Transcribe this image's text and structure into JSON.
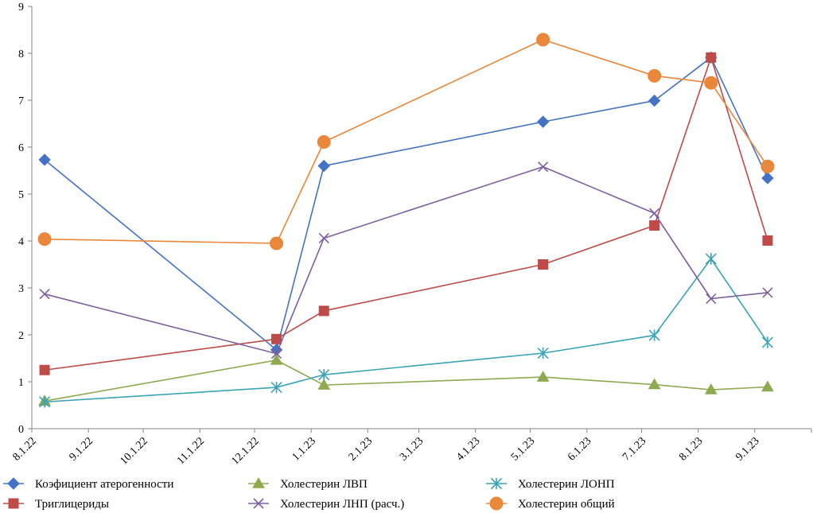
{
  "chart_data": {
    "type": "line",
    "title": "",
    "xlabel": "",
    "ylabel": "",
    "x_type": "date",
    "x_ticks": [
      "8.1.22",
      "9.1.22",
      "10.1.22",
      "11.1.22",
      "12.1.22",
      "1.1.23",
      "2.1.23",
      "3.1.23",
      "4.1.23",
      "5.1.23",
      "6.1.23",
      "7.1.23",
      "8.1.23",
      "9.1.23"
    ],
    "x_tick_dates": [
      "2022-08-01",
      "2022-09-01",
      "2022-10-01",
      "2022-11-01",
      "2022-12-01",
      "2023-01-01",
      "2023-02-01",
      "2023-03-01",
      "2023-04-01",
      "2023-05-01",
      "2023-06-01",
      "2023-07-01",
      "2023-08-01",
      "2023-09-01"
    ],
    "x": [
      "2022-08-08",
      "2022-12-13",
      "2023-01-08",
      "2023-05-08",
      "2023-07-08",
      "2023-08-08",
      "2023-09-08"
    ],
    "ylim": [
      0,
      9
    ],
    "y_ticks": [
      0,
      1,
      2,
      3,
      4,
      5,
      6,
      7,
      8,
      9
    ],
    "grid": false,
    "legend_position": "bottom",
    "series": [
      {
        "name": "Коэфициент атерогенности",
        "marker": "diamond",
        "color": "#4472C4",
        "values": [
          5.73,
          1.68,
          5.6,
          6.54,
          6.99,
          7.91,
          5.34
        ]
      },
      {
        "name": "Холестерин ЛВП",
        "marker": "triangle",
        "color": "#8EAA4F",
        "values": [
          0.59,
          1.46,
          0.93,
          1.1,
          0.94,
          0.83,
          0.89
        ]
      },
      {
        "name": "Холестерин ЛОНП",
        "marker": "asterisk",
        "color": "#3AA4B6",
        "values": [
          0.57,
          0.88,
          1.15,
          1.61,
          1.99,
          3.62,
          1.84
        ]
      },
      {
        "name": "Триглицериды",
        "marker": "square",
        "color": "#BE4B48",
        "values": [
          1.25,
          1.91,
          2.51,
          3.5,
          4.33,
          7.91,
          4.01
        ]
      },
      {
        "name": "Холестерин ЛНП (расч.)",
        "marker": "x",
        "color": "#7D5FA0",
        "values": [
          2.87,
          1.6,
          4.06,
          5.58,
          4.59,
          2.77,
          2.9
        ]
      },
      {
        "name": "Холестерин общий",
        "marker": "circle",
        "color": "#E9873A",
        "values": [
          4.04,
          3.95,
          6.11,
          8.29,
          7.52,
          7.37,
          5.59
        ]
      }
    ]
  }
}
